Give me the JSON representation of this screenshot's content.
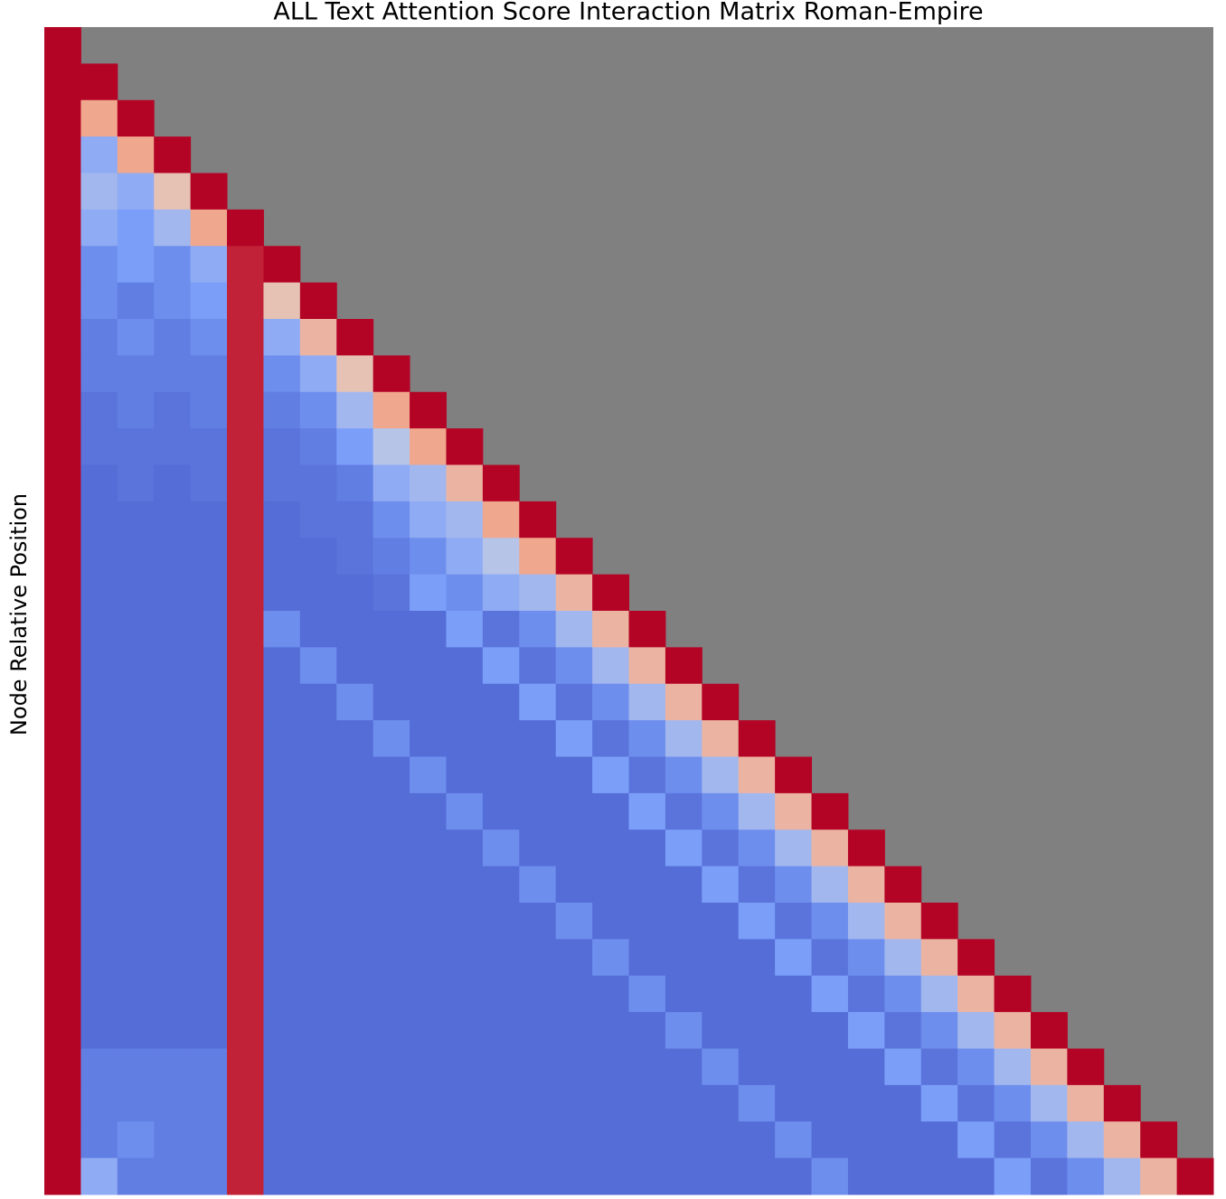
{
  "chart_data": {
    "type": "heatmap",
    "title": "ALL Text Attention Score Interaction Matrix Roman-Empire",
    "ylabel": "Node Relative Position",
    "zlim": [
      0,
      1
    ],
    "colorscale": [
      "#3b4cc0",
      "#7b9ff9",
      "#dddcdc",
      "#f49a7b",
      "#b40426"
    ],
    "mask_color": "#808080",
    "z": [
      [
        1
      ],
      [
        1,
        1
      ],
      [
        1,
        0.7,
        1
      ],
      [
        1,
        0.3,
        0.7,
        1
      ],
      [
        1,
        0.35,
        0.3,
        0.6,
        1
      ],
      [
        1,
        0.3,
        0.25,
        0.35,
        0.7,
        1
      ],
      [
        1,
        0.2,
        0.25,
        0.2,
        0.3,
        0.95,
        1
      ],
      [
        1,
        0.2,
        0.15,
        0.2,
        0.25,
        0.95,
        0.6,
        1
      ],
      [
        1,
        0.15,
        0.2,
        0.15,
        0.2,
        0.95,
        0.3,
        0.65,
        1
      ],
      [
        1,
        0.15,
        0.15,
        0.15,
        0.15,
        0.95,
        0.2,
        0.3,
        0.6,
        1
      ],
      [
        1,
        0.12,
        0.15,
        0.12,
        0.15,
        0.95,
        0.15,
        0.2,
        0.35,
        0.7,
        1
      ],
      [
        1,
        0.12,
        0.12,
        0.12,
        0.12,
        0.95,
        0.12,
        0.15,
        0.25,
        0.4,
        0.7,
        1
      ],
      [
        1,
        0.1,
        0.12,
        0.1,
        0.12,
        0.95,
        0.12,
        0.12,
        0.15,
        0.3,
        0.35,
        0.65,
        1
      ],
      [
        1,
        0.1,
        0.1,
        0.1,
        0.1,
        0.95,
        0.1,
        0.12,
        0.12,
        0.2,
        0.3,
        0.35,
        0.7,
        1
      ],
      [
        1,
        0.1,
        0.1,
        0.1,
        0.1,
        0.95,
        0.1,
        0.1,
        0.12,
        0.15,
        0.2,
        0.3,
        0.4,
        0.7,
        1
      ],
      [
        1,
        0.1,
        0.1,
        0.1,
        0.1,
        0.95,
        0.1,
        0.1,
        0.1,
        0.12,
        0.25,
        0.2,
        0.3,
        0.35,
        0.65,
        1
      ],
      [
        1,
        0.1,
        0.1,
        0.1,
        0.1,
        0.95,
        0.2,
        0.1,
        0.1,
        0.1,
        0.1,
        0.25,
        0.12,
        0.2,
        0.35,
        0.65,
        1
      ],
      [
        1,
        0.1,
        0.1,
        0.1,
        0.1,
        0.95,
        0.1,
        0.2,
        0.1,
        0.1,
        0.1,
        0.1,
        0.25,
        0.12,
        0.2,
        0.35,
        0.65,
        1
      ],
      [
        1,
        0.1,
        0.1,
        0.1,
        0.1,
        0.95,
        0.1,
        0.1,
        0.2,
        0.1,
        0.1,
        0.1,
        0.1,
        0.25,
        0.12,
        0.2,
        0.35,
        0.65,
        1
      ],
      [
        1,
        0.1,
        0.1,
        0.1,
        0.1,
        0.95,
        0.1,
        0.1,
        0.1,
        0.2,
        0.1,
        0.1,
        0.1,
        0.1,
        0.25,
        0.12,
        0.2,
        0.35,
        0.65,
        1
      ],
      [
        1,
        0.1,
        0.1,
        0.1,
        0.1,
        0.95,
        0.1,
        0.1,
        0.1,
        0.1,
        0.2,
        0.1,
        0.1,
        0.1,
        0.1,
        0.25,
        0.12,
        0.2,
        0.35,
        0.65,
        1
      ],
      [
        1,
        0.1,
        0.1,
        0.1,
        0.1,
        0.95,
        0.1,
        0.1,
        0.1,
        0.1,
        0.1,
        0.2,
        0.1,
        0.1,
        0.1,
        0.1,
        0.25,
        0.12,
        0.2,
        0.35,
        0.65,
        1
      ],
      [
        1,
        0.1,
        0.1,
        0.1,
        0.1,
        0.95,
        0.1,
        0.1,
        0.1,
        0.1,
        0.1,
        0.1,
        0.2,
        0.1,
        0.1,
        0.1,
        0.1,
        0.25,
        0.12,
        0.2,
        0.35,
        0.65,
        1
      ],
      [
        1,
        0.1,
        0.1,
        0.1,
        0.1,
        0.95,
        0.1,
        0.1,
        0.1,
        0.1,
        0.1,
        0.1,
        0.1,
        0.2,
        0.1,
        0.1,
        0.1,
        0.1,
        0.25,
        0.12,
        0.2,
        0.35,
        0.65,
        1
      ],
      [
        1,
        0.1,
        0.1,
        0.1,
        0.1,
        0.95,
        0.1,
        0.1,
        0.1,
        0.1,
        0.1,
        0.1,
        0.1,
        0.1,
        0.2,
        0.1,
        0.1,
        0.1,
        0.1,
        0.25,
        0.12,
        0.2,
        0.35,
        0.65,
        1
      ],
      [
        1,
        0.1,
        0.1,
        0.1,
        0.1,
        0.95,
        0.1,
        0.1,
        0.1,
        0.1,
        0.1,
        0.1,
        0.1,
        0.1,
        0.1,
        0.2,
        0.1,
        0.1,
        0.1,
        0.1,
        0.25,
        0.12,
        0.2,
        0.35,
        0.65,
        1
      ],
      [
        1,
        0.1,
        0.1,
        0.1,
        0.1,
        0.95,
        0.1,
        0.1,
        0.1,
        0.1,
        0.1,
        0.1,
        0.1,
        0.1,
        0.1,
        0.1,
        0.2,
        0.1,
        0.1,
        0.1,
        0.1,
        0.25,
        0.12,
        0.2,
        0.35,
        0.65,
        1
      ],
      [
        1,
        0.1,
        0.1,
        0.1,
        0.1,
        0.95,
        0.1,
        0.1,
        0.1,
        0.1,
        0.1,
        0.1,
        0.1,
        0.1,
        0.1,
        0.1,
        0.1,
        0.2,
        0.1,
        0.1,
        0.1,
        0.1,
        0.25,
        0.12,
        0.2,
        0.35,
        0.65,
        1
      ],
      [
        1,
        0.15,
        0.15,
        0.15,
        0.15,
        0.95,
        0.1,
        0.1,
        0.1,
        0.1,
        0.1,
        0.1,
        0.1,
        0.1,
        0.1,
        0.1,
        0.1,
        0.1,
        0.2,
        0.1,
        0.1,
        0.1,
        0.1,
        0.25,
        0.12,
        0.2,
        0.35,
        0.65,
        1
      ],
      [
        1,
        0.15,
        0.15,
        0.15,
        0.15,
        0.95,
        0.1,
        0.1,
        0.1,
        0.1,
        0.1,
        0.1,
        0.1,
        0.1,
        0.1,
        0.1,
        0.1,
        0.1,
        0.1,
        0.2,
        0.1,
        0.1,
        0.1,
        0.1,
        0.25,
        0.12,
        0.2,
        0.35,
        0.65,
        1
      ],
      [
        1,
        0.15,
        0.2,
        0.15,
        0.15,
        0.95,
        0.1,
        0.1,
        0.1,
        0.1,
        0.1,
        0.1,
        0.1,
        0.1,
        0.1,
        0.1,
        0.1,
        0.1,
        0.1,
        0.1,
        0.2,
        0.1,
        0.1,
        0.1,
        0.1,
        0.25,
        0.12,
        0.2,
        0.35,
        0.65,
        1
      ],
      [
        1,
        0.3,
        0.15,
        0.15,
        0.15,
        0.95,
        0.1,
        0.1,
        0.1,
        0.1,
        0.1,
        0.1,
        0.1,
        0.1,
        0.1,
        0.1,
        0.1,
        0.1,
        0.1,
        0.1,
        0.1,
        0.2,
        0.1,
        0.1,
        0.1,
        0.1,
        0.25,
        0.12,
        0.2,
        0.35,
        0.65,
        1
      ]
    ]
  }
}
